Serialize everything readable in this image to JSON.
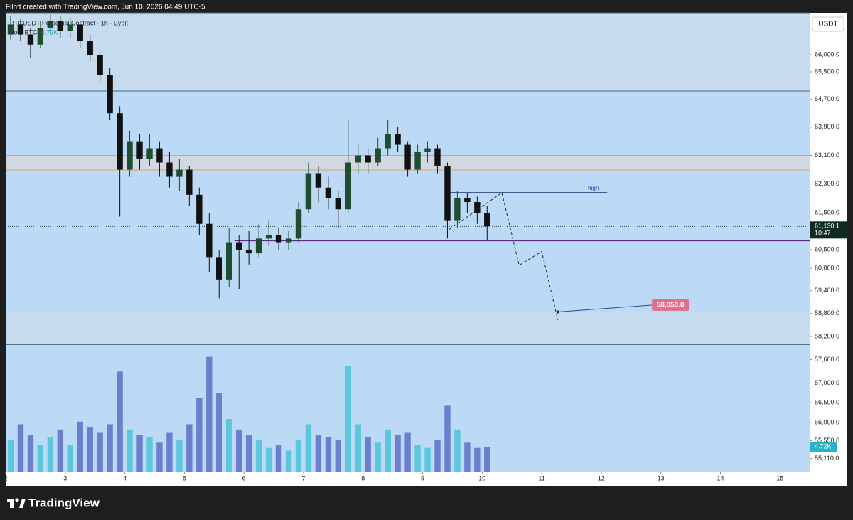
{
  "header": "Filnft created with TradingView.com, Jun 10, 2026 04:49 UTC-5",
  "currency": "USDT",
  "brand": "TradingView",
  "chart_data": {
    "type": "candlestick",
    "title": "BTCUSDT Perpetual Contract · 1h · Bybit",
    "up_color": "#1f4d2f",
    "down_color": "#111111",
    "x": [
      2.083,
      2.25,
      2.417,
      2.583,
      2.75,
      2.917,
      3.083,
      3.25,
      3.417,
      3.583,
      3.75,
      3.917,
      4.083,
      4.25,
      4.417,
      4.583,
      4.75,
      4.917,
      5.083,
      5.25,
      5.417,
      5.583,
      5.75,
      5.917,
      6.083,
      6.25,
      6.417,
      6.583,
      6.75,
      6.917,
      7.083,
      7.25,
      7.417,
      7.583,
      7.75,
      7.917,
      8.083,
      8.25,
      8.417,
      8.583,
      8.75,
      8.917,
      9.083,
      9.25,
      9.417,
      9.583,
      9.75,
      9.917,
      10.083
    ],
    "open": [
      66600,
      66900,
      66600,
      66300,
      66800,
      67000,
      66700,
      66900,
      66400,
      66000,
      65400,
      64300,
      62700,
      63500,
      63000,
      63300,
      62900,
      62500,
      62700,
      62000,
      61200,
      60300,
      59700,
      60700,
      60500,
      60400,
      60800,
      60900,
      60700,
      60800,
      61600,
      62600,
      62200,
      61900,
      61600,
      62900,
      63100,
      62900,
      63300,
      63700,
      63400,
      62700,
      63200,
      63300,
      62800,
      61300,
      61900,
      61800,
      61500
    ],
    "high": [
      67150,
      67050,
      66800,
      67000,
      67200,
      67150,
      67100,
      67000,
      66600,
      66100,
      65600,
      64500,
      63800,
      63700,
      63700,
      63500,
      63200,
      63000,
      62800,
      62200,
      61500,
      60500,
      61100,
      60900,
      61000,
      61200,
      61300,
      61100,
      61000,
      61800,
      62900,
      62800,
      62500,
      62100,
      64100,
      63400,
      63300,
      63600,
      64100,
      63900,
      63500,
      63400,
      63500,
      63400,
      62900,
      62100,
      62050,
      61950,
      61700
    ],
    "low": [
      66450,
      66400,
      65900,
      66200,
      66600,
      66500,
      66500,
      66200,
      65800,
      65200,
      64100,
      61400,
      62500,
      62700,
      62800,
      62500,
      62200,
      62100,
      61700,
      60900,
      59900,
      59200,
      59500,
      59450,
      60100,
      60300,
      60600,
      60500,
      60500,
      60700,
      61500,
      61800,
      61600,
      61100,
      61500,
      62600,
      62600,
      62800,
      63100,
      63200,
      62500,
      62600,
      62900,
      62600,
      60800,
      61100,
      61500,
      61200,
      60750
    ],
    "close": [
      66900,
      66600,
      66300,
      66800,
      67000,
      66700,
      66900,
      66400,
      66000,
      65400,
      64300,
      62700,
      63500,
      63000,
      63300,
      62900,
      62500,
      62700,
      62000,
      61200,
      60300,
      59700,
      60700,
      60500,
      60400,
      60800,
      60900,
      60700,
      60800,
      61600,
      62600,
      62200,
      61900,
      61600,
      62900,
      63100,
      62900,
      63300,
      63700,
      63400,
      62700,
      63200,
      63300,
      62800,
      61300,
      61900,
      61800,
      61500,
      61130.1
    ],
    "volume": {
      "name": "Vol · BTC",
      "up_color": "#5bc6dc",
      "down_color": "#6b7fcf",
      "ylim": [
        0,
        30000
      ],
      "values": [
        6000,
        9000,
        7000,
        5000,
        6500,
        8000,
        5000,
        9500,
        8500,
        7500,
        9000,
        19000,
        8000,
        7000,
        6500,
        5500,
        7500,
        6000,
        9000,
        14000,
        21800,
        15000,
        10000,
        8000,
        7000,
        6000,
        4500,
        5000,
        4000,
        6000,
        9000,
        7000,
        6500,
        6000,
        20000,
        9000,
        6500,
        5500,
        8000,
        7000,
        7500,
        5000,
        4500,
        6000,
        12500,
        8000,
        5500,
        4500,
        4720
      ],
      "last_label": "4.72K"
    },
    "last_price": {
      "value": 61130.1,
      "label": "61,130.1"
    },
    "countdown": "10:47",
    "log_scale": true,
    "xlim": [
      2,
      15.51
    ],
    "xticks": [
      2,
      3,
      4,
      5,
      6,
      7,
      8,
      9,
      10,
      11,
      12,
      13,
      14,
      15
    ],
    "ylim": [
      54790,
      67250
    ],
    "yticks": [
      {
        "value": 66000,
        "label": "66,000.0"
      },
      {
        "value": 65500,
        "label": "65,500.0"
      },
      {
        "value": 64700,
        "label": "64,700.0"
      },
      {
        "value": 63900,
        "label": "63,900.0"
      },
      {
        "value": 63100,
        "label": "63,100.0"
      },
      {
        "value": 62300,
        "label": "62,300.0"
      },
      {
        "value": 61500,
        "label": "61,500.0"
      },
      {
        "value": 60500,
        "label": "60,500.0"
      },
      {
        "value": 60000,
        "label": "60,000.0"
      },
      {
        "value": 59400,
        "label": "59,400.0"
      },
      {
        "value": 58800,
        "label": "58,800.0"
      },
      {
        "value": 58200,
        "label": "58,200.0"
      },
      {
        "value": 57600,
        "label": "57,600.0"
      },
      {
        "value": 57000,
        "label": "57,000.0"
      },
      {
        "value": 56500,
        "label": "56,500.0"
      },
      {
        "value": 56000,
        "label": "56,000.0"
      },
      {
        "value": 55550,
        "label": "55,550.0"
      },
      {
        "value": 55110,
        "label": "55,110.0"
      }
    ],
    "zones": [
      {
        "low": 64940,
        "high": 67250,
        "color": "#c6dcee",
        "border": "#4d6478"
      },
      {
        "low": 57990,
        "high": 58840,
        "color": "#c6dcee",
        "border": "#4d6478"
      },
      {
        "low": 62690,
        "high": 63100,
        "color": "#d2d8e2",
        "border": "#d9a66b"
      }
    ],
    "support_line": {
      "y": 60740,
      "x_start": 5.84,
      "color": "#5b2a86"
    },
    "high_line": {
      "y": 62060,
      "x": [
        9.45,
        12.1
      ],
      "label": "high",
      "color": "#1c2f6b"
    },
    "projection": {
      "x": [
        9.45,
        10.33,
        10.62,
        11.0,
        11.27
      ],
      "y": [
        61050,
        62060,
        60080,
        60450,
        58630
      ]
    },
    "target": {
      "x": [
        11.27,
        12.85
      ],
      "y": [
        58840,
        59020
      ],
      "label": "58,850.0",
      "color": "#e0708a"
    }
  }
}
